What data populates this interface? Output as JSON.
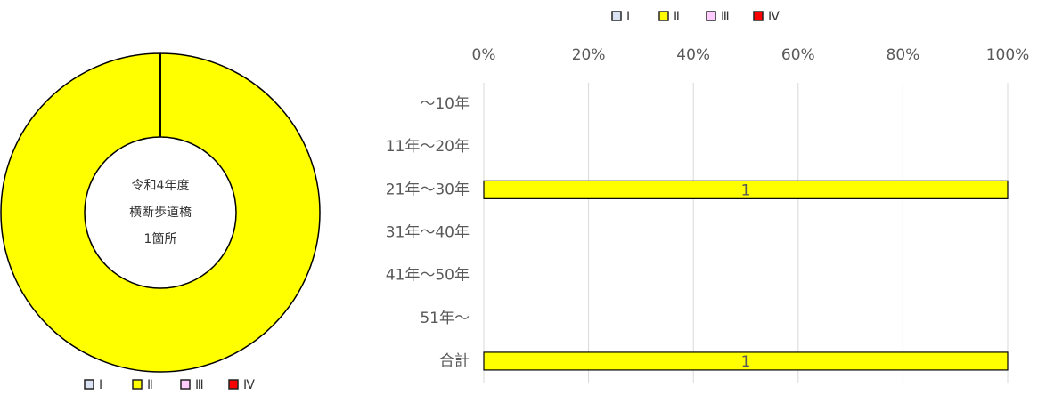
{
  "chart_data": [
    {
      "type": "pie",
      "donut": true,
      "center_text": [
        "令和4年度",
        "横断歩道橋",
        "1箇所"
      ],
      "categories": [
        "Ⅰ",
        "Ⅱ",
        "Ⅲ",
        "Ⅳ"
      ],
      "colors": [
        "#dae3f3",
        "#ffff00",
        "#ffccff",
        "#ff0000"
      ],
      "values": [
        0,
        1,
        0,
        0
      ],
      "legend": "bottom"
    },
    {
      "type": "bar",
      "orientation": "horizontal",
      "stacked": true,
      "categories": [
        "～10年",
        "11年～20年",
        "21年～30年",
        "31年～40年",
        "41年～50年",
        "51年～",
        "合計"
      ],
      "series": [
        {
          "name": "Ⅰ",
          "color": "#dae3f3",
          "values": [
            0,
            0,
            0,
            0,
            0,
            0,
            0
          ],
          "counts": [
            null,
            null,
            null,
            null,
            null,
            null,
            null
          ]
        },
        {
          "name": "Ⅱ",
          "color": "#ffff00",
          "values": [
            0,
            0,
            100,
            0,
            0,
            0,
            100
          ],
          "counts": [
            null,
            null,
            1,
            null,
            null,
            null,
            1
          ]
        },
        {
          "name": "Ⅲ",
          "color": "#ffccff",
          "values": [
            0,
            0,
            0,
            0,
            0,
            0,
            0
          ],
          "counts": [
            null,
            null,
            null,
            null,
            null,
            null,
            null
          ]
        },
        {
          "name": "Ⅳ",
          "color": "#ff0000",
          "values": [
            0,
            0,
            0,
            0,
            0,
            0,
            0
          ],
          "counts": [
            null,
            null,
            null,
            null,
            null,
            null,
            null
          ]
        }
      ],
      "xlim": [
        0,
        100
      ],
      "xticks": [
        {
          "value": 0,
          "label": "0%"
        },
        {
          "value": 20,
          "label": "20%"
        },
        {
          "value": 40,
          "label": "40%"
        },
        {
          "value": 60,
          "label": "60%"
        },
        {
          "value": 80,
          "label": "80%"
        },
        {
          "value": 100,
          "label": "100%"
        }
      ],
      "grid": true,
      "legend": "top"
    }
  ]
}
